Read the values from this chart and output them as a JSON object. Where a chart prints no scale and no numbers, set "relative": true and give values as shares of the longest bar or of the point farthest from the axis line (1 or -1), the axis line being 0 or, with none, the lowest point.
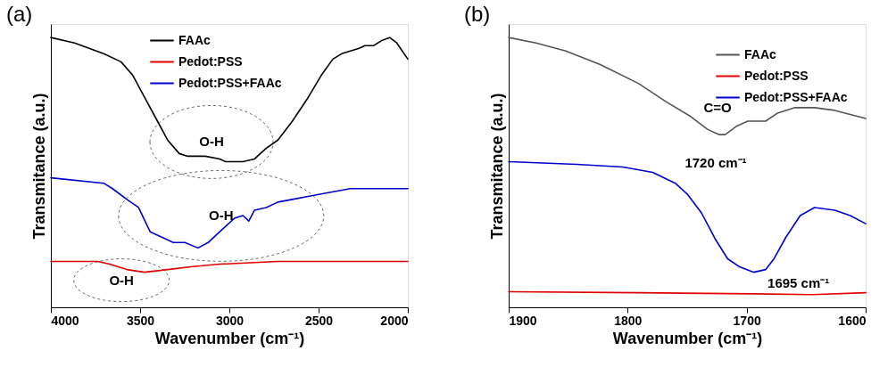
{
  "chart_data": [
    {
      "type": "line",
      "title": "(a)",
      "xlabel": "Wavenumber (cm⁻¹)",
      "ylabel": "Transmitance (a.u.)",
      "relative": true,
      "xlim": [
        4000,
        2000
      ],
      "xticks": [
        4000,
        3500,
        3000,
        2500,
        2000
      ],
      "legend": "top",
      "grid": false,
      "marker": "none",
      "line_style": "solid",
      "series": [
        {
          "name": "FAAc",
          "color": "#000000",
          "x": [
            4000,
            3867,
            3704,
            3607,
            3541,
            3476,
            3411,
            3346,
            3281,
            3233,
            3135,
            3054,
            3021,
            2924,
            2859,
            2793,
            2728,
            2647,
            2566,
            2485,
            2420,
            2371,
            2322,
            2273,
            2241,
            2192,
            2143,
            2102,
            2062,
            2021,
            2000
          ],
          "values": [
            1.0,
            0.98,
            0.94,
            0.91,
            0.86,
            0.78,
            0.7,
            0.62,
            0.57,
            0.56,
            0.56,
            0.55,
            0.54,
            0.54,
            0.55,
            0.59,
            0.62,
            0.69,
            0.77,
            0.86,
            0.92,
            0.94,
            0.95,
            0.96,
            0.97,
            0.97,
            0.99,
            1.0,
            0.98,
            0.94,
            0.92
          ]
        },
        {
          "name": "Pedot:PSS",
          "color": "#e00000",
          "x": [
            4000,
            3737,
            3672,
            3574,
            3476,
            3346,
            3216,
            3054,
            2728,
            2000
          ],
          "values": [
            0.17,
            0.17,
            0.16,
            0.14,
            0.13,
            0.14,
            0.15,
            0.16,
            0.17,
            0.17
          ]
        },
        {
          "name": "Pedot:PSS+FAAc",
          "color": "#0000cc",
          "x": [
            4000,
            3704,
            3655,
            3574,
            3509,
            3444,
            3379,
            3314,
            3249,
            3176,
            3119,
            3054,
            2972,
            2924,
            2891,
            2859,
            2793,
            2728,
            2647,
            2566,
            2485,
            2322,
            2013,
            2000
          ],
          "values": [
            0.48,
            0.46,
            0.44,
            0.4,
            0.37,
            0.28,
            0.26,
            0.24,
            0.24,
            0.22,
            0.24,
            0.28,
            0.33,
            0.34,
            0.32,
            0.36,
            0.37,
            0.39,
            0.4,
            0.41,
            0.42,
            0.44,
            0.44,
            0.44
          ]
        }
      ],
      "annotations": [
        {
          "text": "O-H",
          "x": 3135,
          "y": 0.56
        },
        {
          "text": "O-H",
          "x": 3176,
          "y": 0.22
        },
        {
          "text": "O-H",
          "x": 3574,
          "y": 0.14
        }
      ]
    },
    {
      "type": "line",
      "title": "(b)",
      "xlabel": "Wavenumber (cm⁻¹)",
      "ylabel": "Transmitance (a.u.)",
      "relative": true,
      "xlim": [
        1900,
        1600
      ],
      "xticks": [
        1900,
        1800,
        1700,
        1600
      ],
      "legend": "top right",
      "grid": false,
      "marker": "none",
      "line_style": "solid",
      "series": [
        {
          "name": "FAAc",
          "color": "#555555",
          "x": [
            1900,
            1877,
            1852,
            1823,
            1791,
            1767,
            1748,
            1733,
            1723,
            1718,
            1709,
            1699,
            1684,
            1674,
            1660,
            1643,
            1626,
            1600
          ],
          "values": [
            1.0,
            0.98,
            0.95,
            0.9,
            0.83,
            0.76,
            0.71,
            0.66,
            0.64,
            0.64,
            0.67,
            0.69,
            0.69,
            0.72,
            0.74,
            0.74,
            0.73,
            0.7
          ]
        },
        {
          "name": "Pedot:PSS",
          "color": "#e00000",
          "x": [
            1900,
            1791,
            1694,
            1645,
            1600
          ],
          "values": [
            0.058,
            0.054,
            0.05,
            0.047,
            0.054
          ]
        },
        {
          "name": "Pedot:PSS+FAAc",
          "color": "#0000cc",
          "x": [
            1900,
            1843,
            1804,
            1779,
            1760,
            1750,
            1738,
            1726,
            1716,
            1706,
            1694,
            1684,
            1677,
            1667,
            1655,
            1643,
            1626,
            1613,
            1600
          ],
          "values": [
            0.54,
            0.53,
            0.52,
            0.5,
            0.46,
            0.42,
            0.35,
            0.25,
            0.18,
            0.15,
            0.13,
            0.14,
            0.18,
            0.26,
            0.34,
            0.37,
            0.36,
            0.34,
            0.31
          ]
        }
      ],
      "annotations": [
        {
          "text": "C=O",
          "x": 1723,
          "y": 0.64
        },
        {
          "text": "1720 cm⁻¹",
          "x": 1723,
          "y": 0.64
        },
        {
          "text": "1695 cm⁻¹",
          "x": 1694,
          "y": 0.13
        }
      ]
    }
  ]
}
